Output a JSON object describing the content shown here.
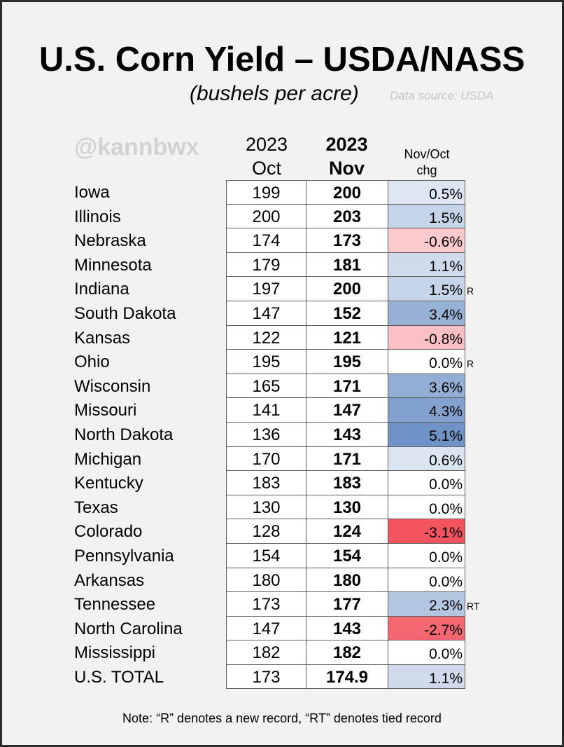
{
  "title": "U.S. Corn Yield – USDA/NASS",
  "subtitle": "(bushels per acre)",
  "source": "Data source: USDA",
  "handle": "@kannbwx",
  "note": "Note: “R” denotes a new record, “RT” denotes tied record",
  "colors": {
    "positive": "#6f93c6",
    "negative": "#f4545e",
    "background": "#f2f2f2"
  },
  "chart_data": {
    "type": "table",
    "columns": {
      "oct": [
        "2023",
        "Oct"
      ],
      "nov": [
        "2023",
        "Nov"
      ],
      "chg": [
        "Nov/Oct",
        "chg"
      ]
    },
    "rows": [
      {
        "state": "Iowa",
        "oct": "199",
        "nov": "200",
        "chg": "0.5%",
        "chg_value": 0.5,
        "mark": ""
      },
      {
        "state": "Illinois",
        "oct": "200",
        "nov": "203",
        "chg": "1.5%",
        "chg_value": 1.5,
        "mark": ""
      },
      {
        "state": "Nebraska",
        "oct": "174",
        "nov": "173",
        "chg": "-0.6%",
        "chg_value": -0.6,
        "mark": ""
      },
      {
        "state": "Minnesota",
        "oct": "179",
        "nov": "181",
        "chg": "1.1%",
        "chg_value": 1.1,
        "mark": ""
      },
      {
        "state": "Indiana",
        "oct": "197",
        "nov": "200",
        "chg": "1.5%",
        "chg_value": 1.5,
        "mark": "R"
      },
      {
        "state": "South Dakota",
        "oct": "147",
        "nov": "152",
        "chg": "3.4%",
        "chg_value": 3.4,
        "mark": ""
      },
      {
        "state": "Kansas",
        "oct": "122",
        "nov": "121",
        "chg": "-0.8%",
        "chg_value": -0.8,
        "mark": ""
      },
      {
        "state": "Ohio",
        "oct": "195",
        "nov": "195",
        "chg": "0.0%",
        "chg_value": 0.0,
        "mark": "R"
      },
      {
        "state": "Wisconsin",
        "oct": "165",
        "nov": "171",
        "chg": "3.6%",
        "chg_value": 3.6,
        "mark": ""
      },
      {
        "state": "Missouri",
        "oct": "141",
        "nov": "147",
        "chg": "4.3%",
        "chg_value": 4.3,
        "mark": ""
      },
      {
        "state": "North Dakota",
        "oct": "136",
        "nov": "143",
        "chg": "5.1%",
        "chg_value": 5.1,
        "mark": ""
      },
      {
        "state": "Michigan",
        "oct": "170",
        "nov": "171",
        "chg": "0.6%",
        "chg_value": 0.6,
        "mark": ""
      },
      {
        "state": "Kentucky",
        "oct": "183",
        "nov": "183",
        "chg": "0.0%",
        "chg_value": 0.0,
        "mark": ""
      },
      {
        "state": "Texas",
        "oct": "130",
        "nov": "130",
        "chg": "0.0%",
        "chg_value": 0.0,
        "mark": ""
      },
      {
        "state": "Colorado",
        "oct": "128",
        "nov": "124",
        "chg": "-3.1%",
        "chg_value": -3.1,
        "mark": ""
      },
      {
        "state": "Pennsylvania",
        "oct": "154",
        "nov": "154",
        "chg": "0.0%",
        "chg_value": 0.0,
        "mark": ""
      },
      {
        "state": "Arkansas",
        "oct": "180",
        "nov": "180",
        "chg": "0.0%",
        "chg_value": 0.0,
        "mark": ""
      },
      {
        "state": "Tennessee",
        "oct": "173",
        "nov": "177",
        "chg": "2.3%",
        "chg_value": 2.3,
        "mark": "RT"
      },
      {
        "state": "North Carolina",
        "oct": "147",
        "nov": "143",
        "chg": "-2.7%",
        "chg_value": -2.7,
        "mark": ""
      },
      {
        "state": "Mississippi",
        "oct": "182",
        "nov": "182",
        "chg": "0.0%",
        "chg_value": 0.0,
        "mark": ""
      },
      {
        "state": "U.S. TOTAL",
        "oct": "173",
        "nov": "174.9",
        "chg": "1.1%",
        "chg_value": 1.1,
        "mark": ""
      }
    ]
  }
}
